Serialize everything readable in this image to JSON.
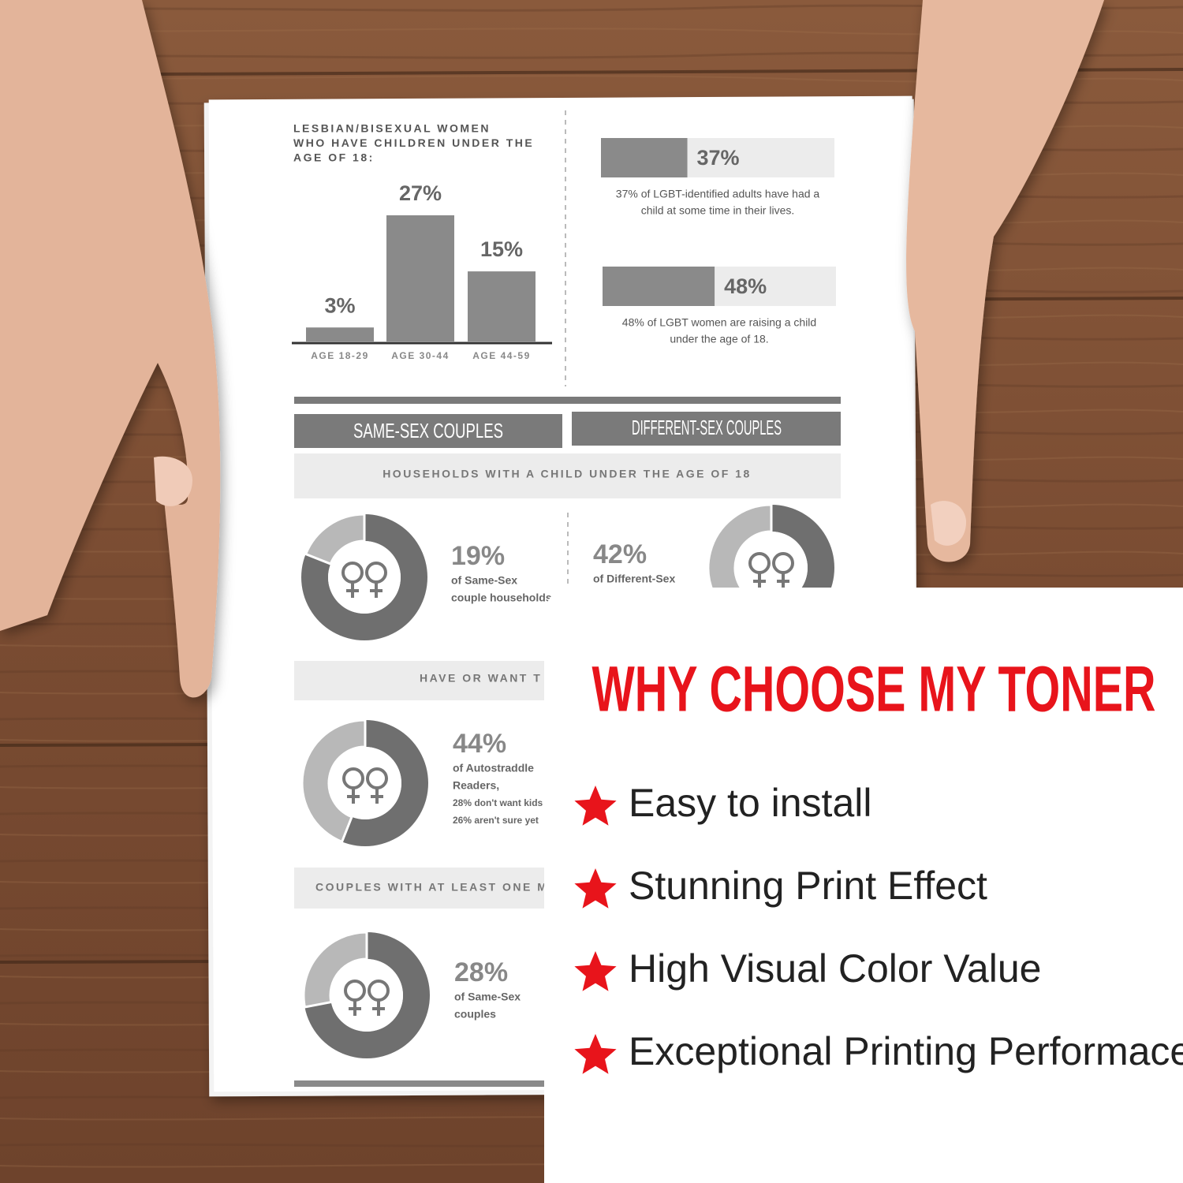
{
  "paper": {
    "bar_chart": {
      "title_lines": [
        "LESBIAN/BISEXUAL WOMEN",
        "WHO HAVE CHILDREN UNDER THE",
        "AGE OF 18:"
      ],
      "categories": [
        "AGE 18-29",
        "AGE 30-44",
        "AGE 44-59"
      ],
      "values": [
        3,
        27,
        15
      ],
      "value_labels": [
        "3%",
        "27%",
        "15%"
      ]
    },
    "stat_bars": [
      {
        "value": 37,
        "value_label": "37%",
        "text_lines": [
          "37% of LGBT-identified adults have had a",
          "child at some time in their lives."
        ]
      },
      {
        "value": 48,
        "value_label": "48%",
        "text_lines": [
          "48% of LGBT women are raising a child",
          "under the age of 18."
        ]
      }
    ],
    "column_headers": [
      "SAME-SEX COUPLES",
      "DIFFERENT-SEX COUPLES"
    ],
    "section_labels": [
      "HOUSEHOLDS WITH A CHILD UNDER THE AGE OF 18",
      "HAVE OR WANT T",
      "COUPLES WITH AT LEAST ONE M"
    ],
    "donuts": [
      {
        "value": 19,
        "value_label": "19%",
        "text_lines": [
          "of Same-Sex",
          "couple households"
        ]
      },
      {
        "value": 42,
        "value_label": "42%",
        "text_lines": [
          "of Different-Sex"
        ]
      },
      {
        "value": 44,
        "value_label": "44%",
        "text_lines": [
          "of Autostraddle",
          "Readers,",
          "28% don't want kids",
          "26% aren't sure yet"
        ]
      },
      {
        "value": 28,
        "value_label": "28%",
        "text_lines": [
          "of Same-Sex",
          "couples"
        ]
      }
    ]
  },
  "card": {
    "title": "WHY CHOOSE MY TONER",
    "features": [
      "Easy to install",
      "Stunning Print Effect",
      "High Visual Color Value",
      "Exceptional Printing Performace"
    ]
  }
}
